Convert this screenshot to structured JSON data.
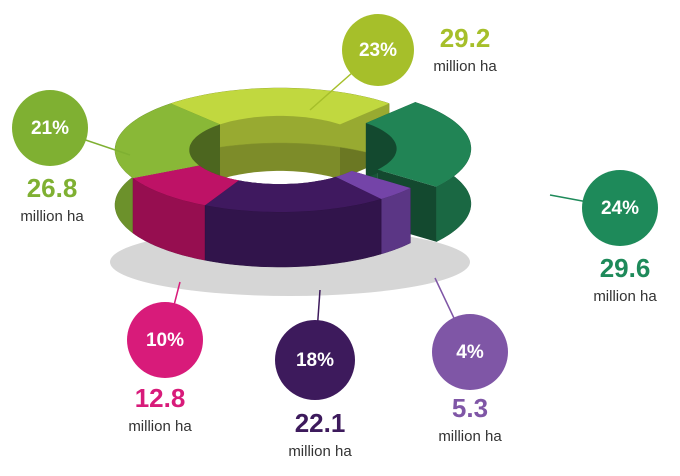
{
  "chart_data": {
    "type": "pie",
    "values": [
      23,
      24,
      4,
      18,
      10,
      21
    ],
    "value_labels": [
      "23%",
      "24%",
      "4%",
      "18%",
      "10%",
      "21%"
    ],
    "areas": [
      29.2,
      29.6,
      5.3,
      22.1,
      12.8,
      26.8
    ],
    "unit": "million ha",
    "colors": [
      "#b3c83a",
      "#1f7a4f",
      "#6b3f9c",
      "#3a1758",
      "#b0115e",
      "#7faa33"
    ],
    "label_colors": [
      "#a6bf2a",
      "#1e8a5a",
      "#7f56a6",
      "#3d1a5c",
      "#d81b7a",
      "#7fb032"
    ],
    "exploded": [
      1
    ]
  }
}
